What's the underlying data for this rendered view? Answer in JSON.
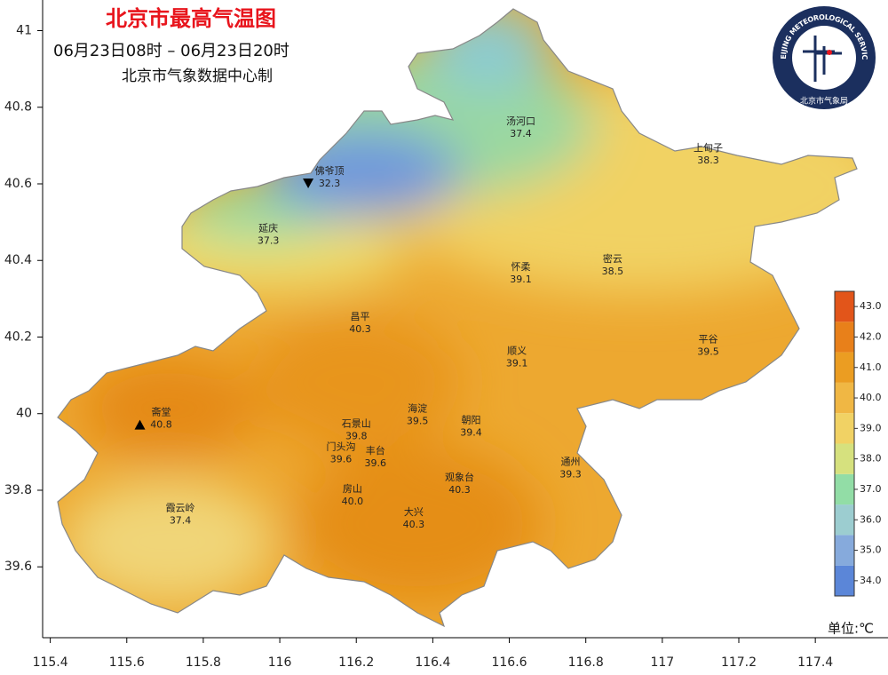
{
  "chart_data": {
    "type": "map",
    "title": "北京市最高气温图",
    "subtitle": "06月23日08时  –  06月23日20时",
    "source": "北京市气象数据中心制",
    "logo": {
      "ring_text": "BEIJING METEOROLOGICAL SERVICE",
      "name": "北京市气象局"
    },
    "xlim": [
      115.38,
      117.59
    ],
    "ylim": [
      39.415,
      41.08
    ],
    "xticks": [
      115.4,
      115.6,
      115.8,
      116,
      116.2,
      116.4,
      116.6,
      116.8,
      117,
      117.2,
      117.4
    ],
    "yticks": [
      {
        "value": 39.6,
        "label": "39.6"
      },
      {
        "value": 39.8,
        "label": "39.8"
      },
      40,
      {
        "value": 40.2,
        "label": "40.2"
      },
      {
        "value": 40.4,
        "label": "40.4"
      },
      {
        "value": 40.6,
        "label": "40.6"
      },
      {
        "value": 40.8,
        "label": "40.8"
      },
      41
    ],
    "stations": [
      {
        "name": "汤河口",
        "lon": 116.63,
        "lat": 40.73,
        "value": 37.4
      },
      {
        "name": "上甸子",
        "lon": 117.12,
        "lat": 40.66,
        "value": 38.3
      },
      {
        "name": "佛爷顶",
        "lon": 116.13,
        "lat": 40.6,
        "value": 32.3,
        "marker": "min"
      },
      {
        "name": "延庆",
        "lon": 115.97,
        "lat": 40.45,
        "value": 37.3
      },
      {
        "name": "怀柔",
        "lon": 116.63,
        "lat": 40.35,
        "value": 39.1
      },
      {
        "name": "密云",
        "lon": 116.87,
        "lat": 40.37,
        "value": 38.5
      },
      {
        "name": "昌平",
        "lon": 116.21,
        "lat": 40.22,
        "value": 40.3
      },
      {
        "name": "平谷",
        "lon": 117.12,
        "lat": 40.16,
        "value": 39.5
      },
      {
        "name": "顺义",
        "lon": 116.62,
        "lat": 40.13,
        "value": 39.1
      },
      {
        "name": "斋堂",
        "lon": 115.69,
        "lat": 39.97,
        "value": 40.8,
        "marker": "max"
      },
      {
        "name": "海淀",
        "lon": 116.36,
        "lat": 39.98,
        "value": 39.5
      },
      {
        "name": "石景山",
        "lon": 116.2,
        "lat": 39.94,
        "value": 39.8
      },
      {
        "name": "朝阳",
        "lon": 116.5,
        "lat": 39.95,
        "value": 39.4
      },
      {
        "name": "门头沟",
        "lon": 116.16,
        "lat": 39.88,
        "value": 39.6
      },
      {
        "name": "丰台",
        "lon": 116.25,
        "lat": 39.87,
        "value": 39.6
      },
      {
        "name": "通州",
        "lon": 116.76,
        "lat": 39.84,
        "value": 39.3
      },
      {
        "name": "观象台",
        "lon": 116.47,
        "lat": 39.8,
        "value": 40.3
      },
      {
        "name": "房山",
        "lon": 116.19,
        "lat": 39.77,
        "value": 40.0
      },
      {
        "name": "大兴",
        "lon": 116.35,
        "lat": 39.71,
        "value": 40.3
      },
      {
        "name": "霞云岭",
        "lon": 115.74,
        "lat": 39.72,
        "value": 37.4
      }
    ],
    "colorbar": {
      "lim": [
        33.5,
        43.5
      ],
      "ticks": [
        {
          "value": 34,
          "label": "34.0"
        },
        {
          "value": 35,
          "label": "35.0"
        },
        {
          "value": 36,
          "label": "36.0"
        },
        {
          "value": 37,
          "label": "37.0"
        },
        {
          "value": 38,
          "label": "38.0"
        },
        {
          "value": 39,
          "label": "39.0"
        },
        {
          "value": 40,
          "label": "40.0"
        },
        {
          "value": 41,
          "label": "41.0"
        },
        {
          "value": 42,
          "label": "42.0"
        },
        {
          "value": 43,
          "label": "43.0"
        }
      ],
      "colors": [
        "#5b86d8",
        "#86aadc",
        "#9ccdd0",
        "#92dda6",
        "#d6e17e",
        "#f1d264",
        "#f0b744",
        "#eb9d22",
        "#e8801a",
        "#e2551a"
      ],
      "unit": "单位:℃"
    }
  }
}
